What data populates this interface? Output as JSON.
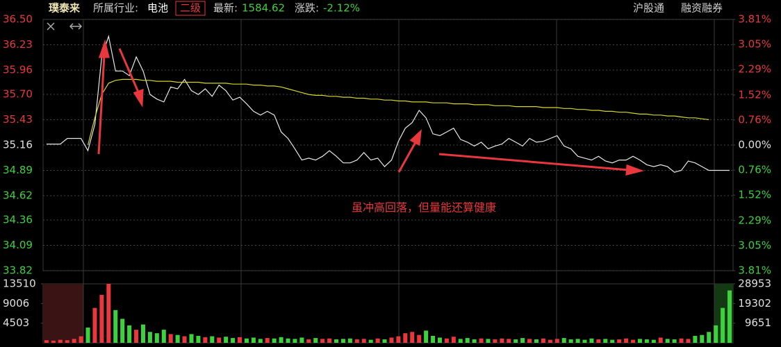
{
  "header": {
    "stock": "璞泰来",
    "industry_label": "所属行业:",
    "industry": "电池",
    "level": "二级",
    "latest_label": "最新:",
    "latest": "1584.62",
    "change_label": "涨跌:",
    "change": "-2.12%",
    "tags": [
      "沪股通",
      "融资融券"
    ]
  },
  "chart_data": [
    {
      "type": "line",
      "annotation": "虽冲高回落，但量能还算健康",
      "ylim": [
        33.82,
        36.5
      ],
      "yticks": [
        {
          "value": 36.5,
          "label": "36.50"
        },
        36.23,
        35.96,
        {
          "value": 35.7,
          "label": "35.70"
        },
        35.43,
        35.16,
        34.89,
        34.62,
        34.36,
        34.09,
        33.82
      ],
      "y2lim": [
        -3.81,
        3.81
      ],
      "y2ticks": [
        {
          "value": 3.81,
          "label": "3.81%"
        },
        {
          "value": 3.05,
          "label": "3.05%"
        },
        {
          "value": 2.29,
          "label": "2.29%"
        },
        {
          "value": 1.52,
          "label": "1.52%"
        },
        {
          "value": 0.76,
          "label": "0.76%"
        },
        {
          "value": 0,
          "label": "0.00%"
        },
        {
          "value": -0.76,
          "label": "0.76%"
        },
        {
          "value": -1.52,
          "label": "1.52%"
        },
        {
          "value": -2.29,
          "label": "2.29%"
        },
        {
          "value": -3.05,
          "label": "3.05%"
        },
        {
          "value": -3.81,
          "label": "3.81%"
        }
      ],
      "grid": true,
      "series": [
        {
          "color": "#e8e8e8",
          "values": [
            35.17,
            35.17,
            35.17,
            35.23,
            35.23,
            35.23,
            35.1,
            35.38,
            36.1,
            36.32,
            35.95,
            35.95,
            35.9,
            36.1,
            35.95,
            35.7,
            35.65,
            35.62,
            35.78,
            35.76,
            35.86,
            35.74,
            35.7,
            35.76,
            35.68,
            35.8,
            35.74,
            35.64,
            35.67,
            35.6,
            35.52,
            35.48,
            35.52,
            35.48,
            35.3,
            35.23,
            35.12,
            35.0,
            35.02,
            35.0,
            35.04,
            35.1,
            35.04,
            34.97,
            34.97,
            35.0,
            35.08,
            35.0,
            35.02,
            34.93,
            35.0,
            35.2,
            35.34,
            35.4,
            35.53,
            35.45,
            35.28,
            35.26,
            35.3,
            35.34,
            35.22,
            35.19,
            35.15,
            35.19,
            35.12,
            35.15,
            35.17,
            35.23,
            35.19,
            35.15,
            35.23,
            35.19,
            35.2,
            35.23,
            35.26,
            35.15,
            35.12,
            35.04,
            35.02,
            35.0,
            35.04,
            34.99,
            34.97,
            35.0,
            35.0,
            35.04,
            35.0,
            34.95,
            34.93,
            34.95,
            34.93,
            34.87,
            34.89,
            34.99,
            34.97,
            34.93,
            34.89,
            34.89,
            34.89,
            34.89
          ]
        },
        {
          "color": "#d6d62a",
          "values": [
            null,
            null,
            null,
            null,
            null,
            null,
            35.16,
            35.45,
            35.7,
            35.82,
            35.85,
            35.86,
            35.86,
            35.86,
            35.85,
            35.85,
            35.84,
            35.84,
            35.84,
            35.83,
            35.83,
            35.83,
            35.83,
            35.82,
            35.82,
            35.82,
            35.82,
            35.81,
            35.81,
            35.81,
            35.8,
            35.8,
            35.79,
            35.79,
            35.78,
            35.76,
            35.74,
            35.72,
            35.7,
            35.69,
            35.69,
            35.68,
            35.68,
            35.67,
            35.67,
            35.66,
            35.66,
            35.65,
            35.65,
            35.64,
            35.64,
            35.63,
            35.63,
            35.62,
            35.62,
            35.62,
            35.61,
            35.61,
            35.61,
            35.6,
            35.6,
            35.6,
            35.59,
            35.59,
            35.59,
            35.58,
            35.58,
            35.58,
            35.57,
            35.57,
            35.57,
            35.57,
            35.56,
            35.56,
            35.56,
            35.55,
            35.55,
            35.54,
            35.54,
            35.53,
            35.53,
            35.52,
            35.52,
            35.51,
            35.51,
            35.5,
            35.49,
            35.49,
            35.48,
            35.48,
            35.47,
            35.47,
            35.46,
            35.45,
            35.45,
            35.44,
            35.43,
            null,
            null,
            null
          ]
        }
      ]
    },
    {
      "type": "bar",
      "ylim": [
        0,
        13510
      ],
      "yticks": [
        13510,
        9006,
        4503
      ],
      "y2lim": [
        0,
        28953
      ],
      "y2ticks": [
        28953,
        19302,
        9651
      ],
      "values": [
        600,
        500,
        700,
        600,
        900,
        1500,
        3500,
        8000,
        11000,
        13510,
        7500,
        5500,
        4000,
        3000,
        4200,
        2500,
        2200,
        3000,
        2000,
        1800,
        1500,
        2000,
        1600,
        1300,
        1500,
        1200,
        1400,
        1100,
        1300,
        1000,
        1200,
        900,
        1100,
        1000,
        1300,
        1000,
        900,
        1200,
        800,
        1100,
        900,
        1000,
        800,
        900,
        1000,
        800,
        900,
        700,
        1000,
        800,
        1200,
        1500,
        2200,
        2500,
        1800,
        2800,
        1600,
        1200,
        1000,
        1400,
        900,
        1100,
        800,
        1000,
        900,
        800,
        1000,
        900,
        800,
        1100,
        900,
        800,
        1000,
        700,
        900,
        1100,
        800,
        900,
        700,
        1000,
        800,
        900,
        700,
        800,
        1000,
        700,
        900,
        800,
        700,
        1200,
        900,
        800,
        1000,
        900,
        1600,
        1800,
        2500,
        4000,
        8000,
        12000
      ]
    }
  ]
}
